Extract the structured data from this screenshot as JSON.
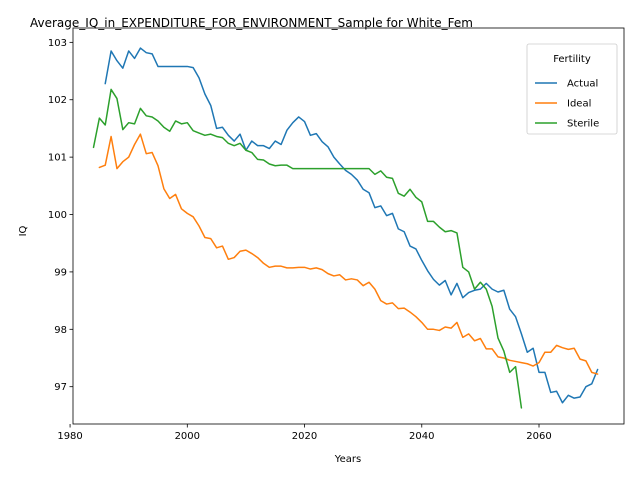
{
  "chart_data": {
    "type": "line",
    "title": "Average_IQ_in_EXPENDITURE_FOR_ENVIRONMENT_Sample for White_Fem",
    "xlabel": "Years",
    "ylabel": "IQ",
    "xlim": [
      1980.5,
      2074.5
    ],
    "ylim": [
      96.35,
      103.25
    ],
    "x_ticks": [
      1980,
      2000,
      2020,
      2040,
      2060
    ],
    "y_ticks": [
      97,
      98,
      99,
      100,
      101,
      102,
      103
    ],
    "legend": {
      "title": "Fertility",
      "position": "top-right"
    },
    "grid": false,
    "series": [
      {
        "name": "Actual",
        "color": "#1f77b4",
        "x": [
          1986,
          1987,
          1988,
          1989,
          1990,
          1991,
          1992,
          1993,
          1994,
          1995,
          1996,
          1997,
          1998,
          1999,
          2000,
          2001,
          2002,
          2003,
          2004,
          2005,
          2006,
          2007,
          2008,
          2009,
          2010,
          2011,
          2012,
          2013,
          2014,
          2015,
          2016,
          2017,
          2018,
          2019,
          2020,
          2021,
          2022,
          2023,
          2024,
          2025,
          2026,
          2027,
          2028,
          2029,
          2030,
          2031,
          2032,
          2033,
          2034,
          2035,
          2036,
          2037,
          2038,
          2039,
          2040,
          2041,
          2042,
          2043,
          2044,
          2045,
          2046,
          2047,
          2048,
          2049,
          2050,
          2051,
          2052,
          2053,
          2054,
          2055,
          2056,
          2057,
          2058,
          2059,
          2060,
          2061,
          2062,
          2063,
          2064,
          2065,
          2066,
          2067,
          2068,
          2069,
          2070
        ],
        "values": [
          102.28,
          102.85,
          102.68,
          102.55,
          102.85,
          102.72,
          102.9,
          102.82,
          102.8,
          102.58,
          102.58,
          102.58,
          102.58,
          102.58,
          102.58,
          102.56,
          102.38,
          102.1,
          101.9,
          101.5,
          101.52,
          101.38,
          101.28,
          101.4,
          101.12,
          101.28,
          101.2,
          101.2,
          101.15,
          101.28,
          101.22,
          101.47,
          101.6,
          101.7,
          101.62,
          101.38,
          101.41,
          101.27,
          101.18,
          101.0,
          100.88,
          100.77,
          100.7,
          100.6,
          100.44,
          100.38,
          100.12,
          100.15,
          99.98,
          100.02,
          99.75,
          99.7,
          99.45,
          99.4,
          99.2,
          99.02,
          98.87,
          98.77,
          98.85,
          98.6,
          98.8,
          98.55,
          98.64,
          98.68,
          98.7,
          98.8,
          98.7,
          98.65,
          98.68,
          98.35,
          98.22,
          97.92,
          97.6,
          97.67,
          97.25,
          97.25,
          96.9,
          96.92,
          96.72,
          96.85,
          96.8,
          96.82,
          97.0,
          97.05,
          97.3
        ]
      },
      {
        "name": "Ideal",
        "color": "#ff7f0e",
        "x": [
          1985,
          1986,
          1987,
          1988,
          1989,
          1990,
          1991,
          1992,
          1993,
          1994,
          1995,
          1996,
          1997,
          1998,
          1999,
          2000,
          2001,
          2002,
          2003,
          2004,
          2005,
          2006,
          2007,
          2008,
          2009,
          2010,
          2011,
          2012,
          2013,
          2014,
          2015,
          2016,
          2017,
          2018,
          2019,
          2020,
          2021,
          2022,
          2023,
          2024,
          2025,
          2026,
          2027,
          2028,
          2029,
          2030,
          2031,
          2032,
          2033,
          2034,
          2035,
          2036,
          2037,
          2038,
          2039,
          2040,
          2041,
          2042,
          2043,
          2044,
          2045,
          2046,
          2047,
          2048,
          2049,
          2050,
          2051,
          2052,
          2053,
          2054,
          2055,
          2056,
          2057,
          2058,
          2059,
          2060,
          2061,
          2062,
          2063,
          2064,
          2065,
          2066,
          2067,
          2068,
          2069,
          2070
        ],
        "values": [
          100.82,
          100.86,
          101.36,
          100.8,
          100.92,
          101.0,
          101.22,
          101.4,
          101.06,
          101.08,
          100.85,
          100.45,
          100.28,
          100.35,
          100.1,
          100.02,
          99.96,
          99.8,
          99.6,
          99.58,
          99.42,
          99.45,
          99.22,
          99.25,
          99.36,
          99.38,
          99.32,
          99.25,
          99.15,
          99.08,
          99.1,
          99.1,
          99.07,
          99.07,
          99.08,
          99.08,
          99.05,
          99.07,
          99.04,
          98.97,
          98.93,
          98.95,
          98.86,
          98.88,
          98.86,
          98.76,
          98.82,
          98.7,
          98.5,
          98.44,
          98.46,
          98.36,
          98.37,
          98.3,
          98.22,
          98.12,
          98.0,
          98.0,
          97.98,
          98.04,
          98.02,
          98.12,
          97.86,
          97.92,
          97.8,
          97.84,
          97.66,
          97.66,
          97.52,
          97.5,
          97.46,
          97.44,
          97.42,
          97.4,
          97.36,
          97.42,
          97.6,
          97.6,
          97.72,
          97.68,
          97.65,
          97.67,
          97.48,
          97.45,
          97.25,
          97.22
        ]
      },
      {
        "name": "Sterile",
        "color": "#2ca02c",
        "x": [
          1984,
          1985,
          1986,
          1987,
          1988,
          1989,
          1990,
          1991,
          1992,
          1993,
          1994,
          1995,
          1996,
          1997,
          1998,
          1999,
          2000,
          2001,
          2002,
          2003,
          2004,
          2005,
          2006,
          2007,
          2008,
          2009,
          2010,
          2011,
          2012,
          2013,
          2014,
          2015,
          2016,
          2017,
          2018,
          2019,
          2020,
          2021,
          2022,
          2023,
          2024,
          2025,
          2026,
          2027,
          2028,
          2029,
          2030,
          2031,
          2032,
          2033,
          2034,
          2035,
          2036,
          2037,
          2038,
          2039,
          2040,
          2041,
          2042,
          2043,
          2044,
          2045,
          2046,
          2047,
          2048,
          2049,
          2050,
          2051,
          2052,
          2053,
          2054,
          2055,
          2056,
          2057
        ],
        "values": [
          101.17,
          101.68,
          101.56,
          102.18,
          102.02,
          101.48,
          101.6,
          101.58,
          101.85,
          101.72,
          101.7,
          101.63,
          101.52,
          101.45,
          101.63,
          101.58,
          101.6,
          101.46,
          101.42,
          101.38,
          101.4,
          101.36,
          101.34,
          101.24,
          101.2,
          101.24,
          101.12,
          101.08,
          100.96,
          100.95,
          100.88,
          100.85,
          100.86,
          100.86,
          100.8,
          100.8,
          100.8,
          100.8,
          100.8,
          100.8,
          100.8,
          100.8,
          100.8,
          100.8,
          100.8,
          100.8,
          100.8,
          100.8,
          100.7,
          100.76,
          100.65,
          100.63,
          100.37,
          100.32,
          100.44,
          100.3,
          100.22,
          99.88,
          99.88,
          99.78,
          99.7,
          99.72,
          99.68,
          99.08,
          99.0,
          98.7,
          98.82,
          98.7,
          98.4,
          97.85,
          97.62,
          97.25,
          97.35,
          96.63
        ]
      }
    ]
  }
}
